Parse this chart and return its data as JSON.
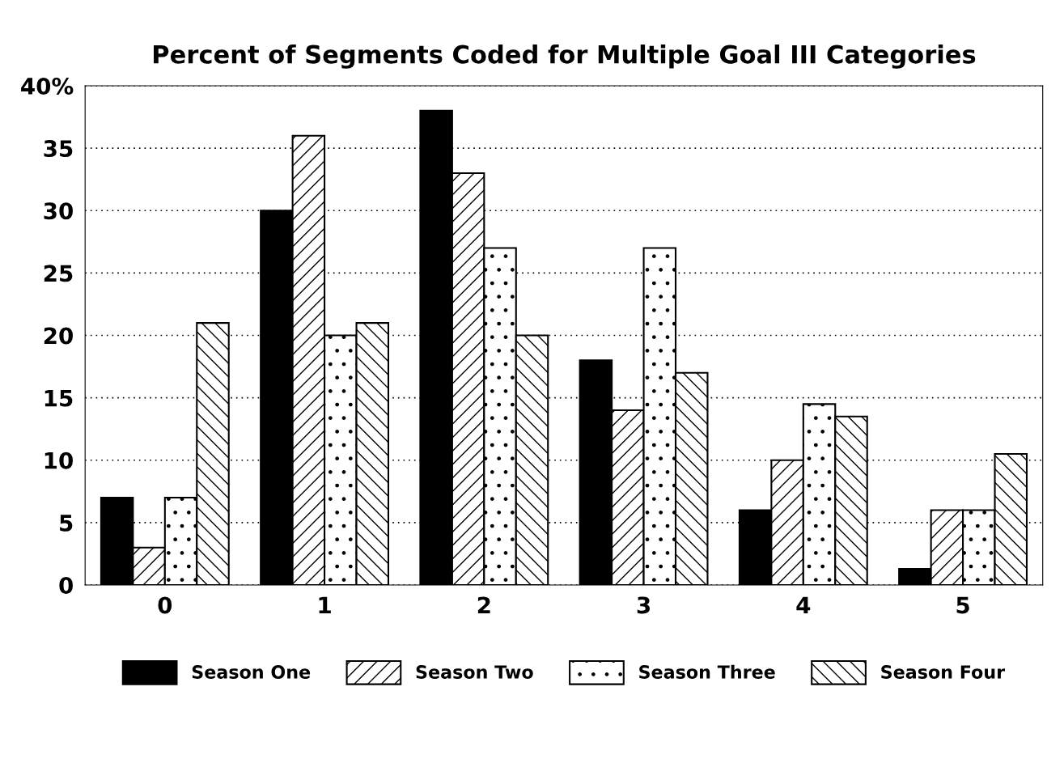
{
  "chart_data": {
    "type": "bar",
    "title": "Percent of Segments Coded for Multiple Goal III Categories",
    "categories": [
      "0",
      "1",
      "2",
      "3",
      "4",
      "5"
    ],
    "series": [
      {
        "name": "Season One",
        "color": "#000000",
        "values": [
          7,
          30,
          38,
          18,
          6,
          1.3
        ]
      },
      {
        "name": "Season Two",
        "color": "#ffffff",
        "values": [
          3,
          36,
          33,
          14,
          10,
          6
        ]
      },
      {
        "name": "Season Three",
        "color": "#ffffff",
        "values": [
          7,
          20,
          27,
          27,
          14.5,
          6
        ]
      },
      {
        "name": "Season Four",
        "color": "#ffffff",
        "values": [
          21,
          21,
          20,
          17,
          13.5,
          10.5
        ]
      }
    ],
    "ylim": [
      0,
      40
    ],
    "yticks": [
      0,
      5,
      10,
      15,
      20,
      25,
      30,
      35,
      {
        "value": 40,
        "label": "40%"
      }
    ],
    "grid": "y",
    "legend": "bottom"
  }
}
